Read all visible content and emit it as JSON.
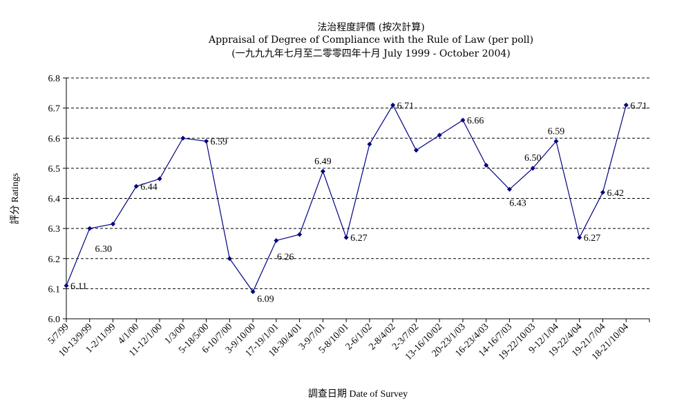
{
  "chart_data": {
    "type": "line",
    "title": "法治程度評價 (按次計算)",
    "subtitle": "Appraisal of Degree of Compliance with the Rule of Law (per poll)",
    "subtitle2": "(一九九九年七月至二零零四年十月 July 1999 - October 2004)",
    "xlabel": "調查日期 Date of Survey",
    "ylabel": "評分 Ratings",
    "ylim": [
      6.0,
      6.8
    ],
    "yticks": [
      "6.0",
      "6.1",
      "6.2",
      "6.3",
      "6.4",
      "6.5",
      "6.6",
      "6.7",
      "6.8"
    ],
    "grid": "horizontal-dashed",
    "line_color": "#000080",
    "x_tick_labels": [
      "5/7/99",
      "10-13/9/99",
      "1-2/11/99",
      "4/1/00",
      "11-12/1/00",
      "1/3/00",
      "5-18/5/00",
      "6-10/7/00",
      "3-9/10/00",
      "17-19/1/01",
      "18-30/4/01",
      "3-9/7/01",
      "5-8/10/01",
      "2-6/1/02",
      "2-8/4/02",
      "2-3/7/02",
      "13-16/10/02",
      "20-23/1/03",
      "16-23/4/03",
      "14-16/7/03",
      "19-22/10/03",
      "9-12/1/04",
      "19-22/4/04",
      "19-21/7/04",
      "18-21/10/04"
    ],
    "points": [
      {
        "x": 0,
        "y": 6.11,
        "label": "6.11"
      },
      {
        "x": 1,
        "y": 6.3,
        "label": "6.30"
      },
      {
        "x": 2,
        "y": 6.315,
        "label": ""
      },
      {
        "x": 3,
        "y": 6.44,
        "label": "6.44"
      },
      {
        "x": 4,
        "y": 6.465,
        "label": ""
      },
      {
        "x": 5,
        "y": 6.6,
        "label": ""
      },
      {
        "x": 6,
        "y": 6.59,
        "label": "6.59"
      },
      {
        "x": 7,
        "y": 6.2,
        "label": ""
      },
      {
        "x": 8,
        "y": 6.09,
        "label": "6.09"
      },
      {
        "x": 9,
        "y": 6.26,
        "label": "6.26"
      },
      {
        "x": 10,
        "y": 6.28,
        "label": ""
      },
      {
        "x": 11,
        "y": 6.49,
        "label": "6.49"
      },
      {
        "x": 12,
        "y": 6.27,
        "label": "6.27"
      },
      {
        "x": 13,
        "y": 6.58,
        "label": ""
      },
      {
        "x": 14,
        "y": 6.71,
        "label": "6.71"
      },
      {
        "x": 15,
        "y": 6.56,
        "label": ""
      },
      {
        "x": 16,
        "y": 6.61,
        "label": ""
      },
      {
        "x": 17,
        "y": 6.66,
        "label": "6.66"
      },
      {
        "x": 18,
        "y": 6.51,
        "label": ""
      },
      {
        "x": 19,
        "y": 6.43,
        "label": "6.43"
      },
      {
        "x": 20,
        "y": 6.5,
        "label": "6.50"
      },
      {
        "x": 21,
        "y": 6.59,
        "label": "6.59"
      },
      {
        "x": 22,
        "y": 6.27,
        "label": "6.27"
      },
      {
        "x": 23,
        "y": 6.42,
        "label": "6.42"
      },
      {
        "x": 24,
        "y": 6.71,
        "label": "6.71"
      }
    ]
  }
}
